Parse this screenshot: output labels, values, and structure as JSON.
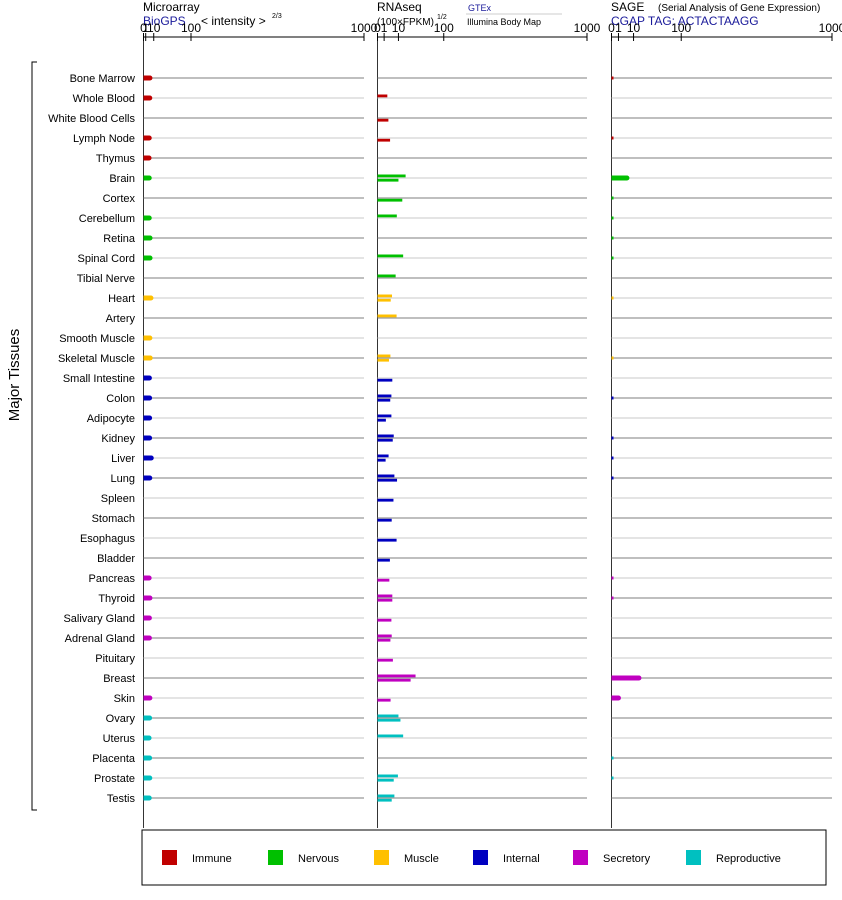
{
  "chart_data": {
    "type": "bar",
    "y_axis_label": "Major Tissues",
    "x_ticks": [
      "0",
      "1",
      "10",
      "100",
      "1000"
    ],
    "panels": {
      "microarray": {
        "title": "Microarray",
        "source": "BioGPS",
        "scale_label": "< intensity >",
        "scale_exponent": "2/3",
        "xlim": [
          0,
          1000
        ]
      },
      "rnaseq": {
        "title": "RNAseq",
        "scale_label": "(100×FPKM)",
        "scale_exponent": "1/2",
        "source_1": "GTEx",
        "source_2": "Illumina Body Map",
        "xlim": [
          0,
          1000
        ]
      },
      "sage": {
        "title": "SAGE",
        "subtitle": "(Serial Analysis of Gene Expression)",
        "source": "CGAP TAG: ACTACTAAGG",
        "xlim": [
          0,
          1000
        ]
      }
    },
    "categories": [
      "Immune",
      "Nervous",
      "Muscle",
      "Internal",
      "Secretory",
      "Reproductive"
    ],
    "category_colors": {
      "Immune": "#c00000",
      "Nervous": "#00c000",
      "Muscle": "#ffc000",
      "Internal": "#0000c0",
      "Secretory": "#c000c0",
      "Reproductive": "#00c0c0"
    },
    "tissues": [
      {
        "name": "Bone Marrow",
        "category": "Immune",
        "microarray": 5.0,
        "rnaseq": [
          null,
          null
        ],
        "sage": 0.1
      },
      {
        "name": "Whole Blood",
        "category": "Immune",
        "microarray": 4.8,
        "rnaseq": [
          2.2,
          null
        ],
        "sage": null
      },
      {
        "name": "White Blood Cells",
        "category": "Immune",
        "microarray": null,
        "rnaseq": [
          null,
          2.7
        ],
        "sage": null
      },
      {
        "name": "Lymph Node",
        "category": "Immune",
        "microarray": 4.2,
        "rnaseq": [
          null,
          3.6
        ],
        "sage": 0.1
      },
      {
        "name": "Thymus",
        "category": "Immune",
        "microarray": 4.0,
        "rnaseq": [
          null,
          null
        ],
        "sage": null
      },
      {
        "name": "Brain",
        "category": "Nervous",
        "microarray": 4.2,
        "rnaseq": [
          18.0,
          10.0
        ],
        "sage": 4.9
      },
      {
        "name": "Cortex",
        "category": "Nervous",
        "microarray": null,
        "rnaseq": [
          null,
          14.0
        ],
        "sage": 0.05
      },
      {
        "name": "Cerebellum",
        "category": "Nervous",
        "microarray": 4.2,
        "rnaseq": [
          8.5,
          null
        ],
        "sage": 0.05
      },
      {
        "name": "Retina",
        "category": "Nervous",
        "microarray": 5.1,
        "rnaseq": [
          null,
          null
        ],
        "sage": 0.05
      },
      {
        "name": "Spinal Cord",
        "category": "Nervous",
        "microarray": 5.1,
        "rnaseq": [
          15.0,
          null
        ],
        "sage": 0.05
      },
      {
        "name": "Tibial Nerve",
        "category": "Nervous",
        "microarray": null,
        "rnaseq": [
          7.5,
          null
        ],
        "sage": null
      },
      {
        "name": "Heart",
        "category": "Muscle",
        "microarray": 6.2,
        "rnaseq": [
          4.8,
          4.0
        ],
        "sage": 0.03
      },
      {
        "name": "Artery",
        "category": "Muscle",
        "microarray": null,
        "rnaseq": [
          8.3,
          null
        ],
        "sage": null
      },
      {
        "name": "Smooth Muscle",
        "category": "Muscle",
        "microarray": 4.9,
        "rnaseq": [
          null,
          null
        ],
        "sage": null
      },
      {
        "name": "Skeletal Muscle",
        "category": "Muscle",
        "microarray": 5.3,
        "rnaseq": [
          3.8,
          3.0
        ],
        "sage": 0.03
      },
      {
        "name": "Small Intestine",
        "category": "Internal",
        "microarray": 4.4,
        "rnaseq": [
          null,
          5.0
        ],
        "sage": null
      },
      {
        "name": "Colon",
        "category": "Internal",
        "microarray": 4.6,
        "rnaseq": [
          4.4,
          3.7
        ],
        "sage": 0.1
      },
      {
        "name": "Adipocyte",
        "category": "Internal",
        "microarray": 4.6,
        "rnaseq": [
          4.4,
          1.6
        ],
        "sage": null
      },
      {
        "name": "Kidney",
        "category": "Internal",
        "microarray": 4.6,
        "rnaseq": [
          6.0,
          5.3
        ],
        "sage": 0.1
      },
      {
        "name": "Liver",
        "category": "Internal",
        "microarray": 6.6,
        "rnaseq": [
          2.8,
          1.5
        ],
        "sage": 0.1
      },
      {
        "name": "Lung",
        "category": "Internal",
        "microarray": 4.8,
        "rnaseq": [
          6.5,
          8.7
        ],
        "sage": 0.1
      },
      {
        "name": "Spleen",
        "category": "Internal",
        "microarray": null,
        "rnaseq": [
          null,
          5.8
        ],
        "sage": null
      },
      {
        "name": "Stomach",
        "category": "Internal",
        "microarray": null,
        "rnaseq": [
          null,
          4.6
        ],
        "sage": null
      },
      {
        "name": "Esophagus",
        "category": "Internal",
        "microarray": null,
        "rnaseq": [
          null,
          8.3
        ],
        "sage": null
      },
      {
        "name": "Bladder",
        "category": "Internal",
        "microarray": null,
        "rnaseq": [
          null,
          3.5
        ],
        "sage": null
      },
      {
        "name": "Pancreas",
        "category": "Secretory",
        "microarray": 4.1,
        "rnaseq": [
          null,
          3.2
        ],
        "sage": 0.1
      },
      {
        "name": "Thyroid",
        "category": "Secretory",
        "microarray": 5.0,
        "rnaseq": [
          5.0,
          5.0
        ],
        "sage": 0.1
      },
      {
        "name": "Salivary Gland",
        "category": "Secretory",
        "microarray": 4.4,
        "rnaseq": [
          null,
          4.4
        ],
        "sage": null
      },
      {
        "name": "Adrenal Gland",
        "category": "Secretory",
        "microarray": 4.4,
        "rnaseq": [
          4.6,
          3.8
        ],
        "sage": null
      },
      {
        "name": "Pituitary",
        "category": "Secretory",
        "microarray": null,
        "rnaseq": [
          null,
          5.4
        ],
        "sage": null
      },
      {
        "name": "Breast",
        "category": "Secretory",
        "microarray": null,
        "rnaseq": [
          33.0,
          25.0
        ],
        "sage": 15.5
      },
      {
        "name": "Skin",
        "category": "Secretory",
        "microarray": 4.9,
        "rnaseq": [
          null,
          3.9
        ],
        "sage": 1.0
      },
      {
        "name": "Ovary",
        "category": "Reproductive",
        "microarray": 4.6,
        "rnaseq": [
          10.0,
          12.0
        ],
        "sage": null
      },
      {
        "name": "Uterus",
        "category": "Reproductive",
        "microarray": 4.0,
        "rnaseq": [
          15.0,
          null
        ],
        "sage": null
      },
      {
        "name": "Placenta",
        "category": "Reproductive",
        "microarray": 4.6,
        "rnaseq": [
          null,
          null
        ],
        "sage": 0.05
      },
      {
        "name": "Prostate",
        "category": "Reproductive",
        "microarray": 4.8,
        "rnaseq": [
          9.5,
          6.0
        ],
        "sage": 0.05
      },
      {
        "name": "Testis",
        "category": "Reproductive",
        "microarray": 4.2,
        "rnaseq": [
          6.5,
          4.6
        ],
        "sage": null
      }
    ]
  }
}
